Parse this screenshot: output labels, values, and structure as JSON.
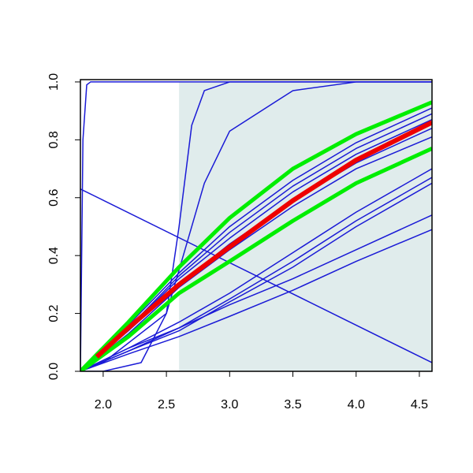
{
  "chart_data": {
    "type": "line",
    "xlim": [
      1.82,
      4.6
    ],
    "ylim": [
      0,
      1.008
    ],
    "xticks": [
      {
        "value": 2,
        "label": "2.0"
      },
      {
        "value": 2.5,
        "label": "2.5"
      },
      {
        "value": 3,
        "label": "3.0"
      },
      {
        "value": 3.5,
        "label": "3.5"
      },
      {
        "value": 4,
        "label": "4.0"
      },
      {
        "value": 4.5,
        "label": "4.5"
      }
    ],
    "yticks": [
      {
        "value": 0,
        "label": "0.0"
      },
      {
        "value": 0.2,
        "label": "0.2"
      },
      {
        "value": 0.4,
        "label": "0.4"
      },
      {
        "value": 0.6,
        "label": "0.6"
      },
      {
        "value": 0.8,
        "label": "0.8"
      },
      {
        "value": 1,
        "label": "1.0"
      }
    ],
    "shaded_region": {
      "x": [
        2.6,
        4.6
      ],
      "y": [
        0,
        1
      ],
      "color": "#e0ecec"
    },
    "series": [
      {
        "color": "#1a1ad6",
        "line_width": 1.5,
        "x": [
          1.82,
          4.6
        ],
        "values": [
          0.63,
          0.03
        ]
      },
      {
        "color": "#1a1ad6",
        "line_width": 1.5,
        "x": [
          1.82,
          1.84,
          1.87,
          1.9,
          4.6
        ],
        "values": [
          0,
          0.8,
          0.99,
          1,
          1
        ]
      },
      {
        "color": "#1a1ad6",
        "line_width": 1.5,
        "x": [
          1.82,
          2.0,
          2.3,
          2.5,
          2.6,
          2.7,
          2.8,
          3.0,
          4.6
        ],
        "values": [
          0,
          0,
          0.03,
          0.2,
          0.5,
          0.85,
          0.97,
          1,
          1
        ]
      },
      {
        "color": "#1a1ad6",
        "line_width": 1.5,
        "x": [
          1.82,
          2.0,
          2.5,
          2.6,
          2.8,
          3.0,
          3.5,
          4.0,
          4.6
        ],
        "values": [
          0,
          0.03,
          0.2,
          0.35,
          0.65,
          0.83,
          0.97,
          1,
          1
        ]
      },
      {
        "color": "#1a1ad6",
        "line_width": 1.5,
        "x": [
          1.82,
          2.2,
          2.6,
          3.0,
          3.5,
          4.0,
          4.6
        ],
        "values": [
          0,
          0.16,
          0.34,
          0.5,
          0.66,
          0.79,
          0.91
        ]
      },
      {
        "color": "#1a1ad6",
        "line_width": 1.5,
        "x": [
          1.82,
          2.2,
          2.6,
          3.0,
          3.5,
          4.0,
          4.6
        ],
        "values": [
          0,
          0.15,
          0.33,
          0.48,
          0.64,
          0.77,
          0.89
        ]
      },
      {
        "color": "#1a1ad6",
        "line_width": 1.5,
        "x": [
          1.82,
          2.2,
          2.6,
          3.0,
          3.5,
          4.0,
          4.6
        ],
        "values": [
          0,
          0.15,
          0.32,
          0.46,
          0.62,
          0.75,
          0.87
        ]
      },
      {
        "color": "#1a1ad6",
        "line_width": 1.5,
        "x": [
          1.82,
          2.2,
          2.6,
          3.0,
          3.5,
          4.0,
          4.6
        ],
        "values": [
          0,
          0.14,
          0.3,
          0.44,
          0.59,
          0.72,
          0.84
        ]
      },
      {
        "color": "#1a1ad6",
        "line_width": 1.5,
        "x": [
          1.82,
          2.2,
          2.6,
          3.0,
          3.5,
          4.0,
          4.6
        ],
        "values": [
          0,
          0.13,
          0.29,
          0.42,
          0.57,
          0.7,
          0.81
        ]
      },
      {
        "color": "#1a1ad6",
        "line_width": 1.5,
        "x": [
          1.82,
          2.2,
          2.6,
          3.0,
          3.5,
          4.0,
          4.6
        ],
        "values": [
          0,
          0.08,
          0.17,
          0.27,
          0.41,
          0.55,
          0.7
        ]
      },
      {
        "color": "#1a1ad6",
        "line_width": 1.5,
        "x": [
          1.82,
          2.2,
          2.6,
          3.0,
          3.5,
          4.0,
          4.6
        ],
        "values": [
          0,
          0.07,
          0.15,
          0.25,
          0.38,
          0.52,
          0.67
        ]
      },
      {
        "color": "#1a1ad6",
        "line_width": 1.5,
        "x": [
          1.82,
          2.2,
          2.6,
          3.0,
          3.5,
          4.0,
          4.6
        ],
        "values": [
          0,
          0.07,
          0.14,
          0.24,
          0.36,
          0.5,
          0.65
        ]
      },
      {
        "color": "#1a1ad6",
        "line_width": 1.5,
        "x": [
          1.82,
          2.2,
          2.6,
          3.0,
          3.5,
          4.0,
          4.6
        ],
        "values": [
          0,
          0.08,
          0.15,
          0.23,
          0.32,
          0.42,
          0.54
        ]
      },
      {
        "color": "#1a1ad6",
        "line_width": 1.5,
        "x": [
          1.82,
          2.2,
          2.6,
          3.0,
          3.5,
          4.0,
          4.6
        ],
        "values": [
          0,
          0.06,
          0.12,
          0.19,
          0.28,
          0.38,
          0.49
        ]
      },
      {
        "color": "#00ee00",
        "line_width": 5,
        "x": [
          1.82,
          2.2,
          2.6,
          3.0,
          3.5,
          4.0,
          4.6
        ],
        "values": [
          0,
          0.17,
          0.36,
          0.53,
          0.7,
          0.82,
          0.93
        ]
      },
      {
        "color": "#00ee00",
        "line_width": 5,
        "x": [
          1.82,
          2.2,
          2.6,
          3.0,
          3.5,
          4.0,
          4.6
        ],
        "values": [
          0,
          0.12,
          0.27,
          0.38,
          0.52,
          0.65,
          0.77
        ]
      },
      {
        "color": "#ee0000",
        "line_width": 6,
        "x": [
          1.95,
          2.2,
          2.6,
          3.0,
          3.5,
          4.0,
          4.6
        ],
        "values": [
          0.05,
          0.15,
          0.3,
          0.43,
          0.59,
          0.73,
          0.86
        ]
      }
    ]
  }
}
